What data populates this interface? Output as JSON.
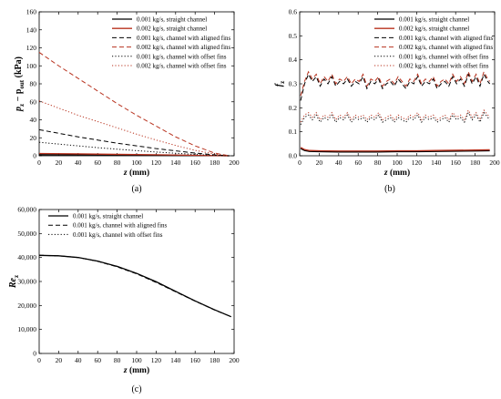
{
  "chart_data": [
    {
      "type": "line",
      "panel_label": "(a)",
      "xlabel": "z",
      "xunit": "(mm)",
      "ylabel": "p",
      "ylabel_sub1": "z",
      "ylabel_mid": " − p",
      "ylabel_sub2": "out",
      "ylabel_unit": " (kPa)",
      "xlim": [
        0,
        200
      ],
      "ylim": [
        0,
        160
      ],
      "xticks": [
        0,
        20,
        40,
        60,
        80,
        100,
        120,
        140,
        160,
        180,
        200
      ],
      "yticks": [
        0,
        20,
        40,
        60,
        80,
        100,
        120,
        140,
        160
      ],
      "legend_position": "top-right",
      "series": [
        {
          "name": "0.001 kg/s, straight channel",
          "color": "#000000",
          "dash": "solid",
          "x": [
            0,
            40,
            80,
            120,
            160,
            195
          ],
          "y": [
            1.2,
            1.0,
            0.8,
            0.6,
            0.3,
            0
          ]
        },
        {
          "name": "0.002 kg/s, straight channel",
          "color": "#b8321e",
          "dash": "solid",
          "x": [
            0,
            40,
            80,
            120,
            160,
            195
          ],
          "y": [
            2.5,
            2.1,
            1.6,
            1.1,
            0.5,
            0
          ]
        },
        {
          "name": "0.001 kg/s, channel with aligned fins",
          "color": "#000000",
          "dash": "dashed",
          "x": [
            0,
            20,
            40,
            60,
            80,
            100,
            120,
            140,
            160,
            180,
            195
          ],
          "y": [
            29,
            25,
            21,
            17.5,
            14,
            11,
            8,
            5.5,
            3,
            1,
            0
          ]
        },
        {
          "name": "0.002 kg/s, channel with aligned fins",
          "color": "#b8321e",
          "dash": "dashed",
          "x": [
            0,
            20,
            40,
            60,
            80,
            100,
            120,
            140,
            160,
            180,
            195
          ],
          "y": [
            115,
            100,
            86,
            72,
            58,
            45,
            33,
            21,
            11,
            3,
            0
          ]
        },
        {
          "name": "0.001 kg/s, channel with offset fins",
          "color": "#000000",
          "dash": "dotted",
          "x": [
            0,
            20,
            40,
            60,
            80,
            100,
            120,
            140,
            160,
            180,
            195
          ],
          "y": [
            15,
            13,
            11,
            9,
            7.3,
            5.7,
            4.2,
            2.8,
            1.5,
            0.5,
            0
          ]
        },
        {
          "name": "0.002 kg/s, channel with offset fins",
          "color": "#b8321e",
          "dash": "dotted",
          "x": [
            0,
            20,
            40,
            60,
            80,
            100,
            120,
            140,
            160,
            180,
            195
          ],
          "y": [
            61,
            53,
            45,
            38,
            31,
            24,
            17.5,
            11.5,
            6,
            2,
            0
          ]
        }
      ]
    },
    {
      "type": "line",
      "panel_label": "(b)",
      "xlabel": "z",
      "xunit": "(mm)",
      "ylabel": "f",
      "ylabel_sub1": "z",
      "xlim": [
        0,
        200
      ],
      "ylim": [
        0.0,
        0.6
      ],
      "xticks": [
        0,
        20,
        40,
        60,
        80,
        100,
        120,
        140,
        160,
        180,
        200
      ],
      "yticks": [
        0.0,
        0.1,
        0.2,
        0.3,
        0.4,
        0.5,
        0.6
      ],
      "legend_position": "top-right",
      "series": [
        {
          "name": "0.001 kg/s, straight channel",
          "color": "#000000",
          "dash": "solid",
          "x": [
            1,
            5,
            10,
            20,
            40,
            60,
            80,
            100,
            120,
            140,
            160,
            180,
            195
          ],
          "y": [
            0.03,
            0.022,
            0.018,
            0.017,
            0.016,
            0.016,
            0.016,
            0.017,
            0.017,
            0.018,
            0.019,
            0.02,
            0.021
          ]
        },
        {
          "name": "0.002 kg/s, straight channel",
          "color": "#b8321e",
          "dash": "solid",
          "x": [
            1,
            5,
            10,
            20,
            40,
            60,
            80,
            100,
            120,
            140,
            160,
            180,
            195
          ],
          "y": [
            0.035,
            0.026,
            0.022,
            0.021,
            0.02,
            0.02,
            0.02,
            0.021,
            0.021,
            0.022,
            0.023,
            0.024,
            0.025
          ]
        },
        {
          "name": "0.001 kg/s, channel with aligned fins",
          "color": "#000000",
          "dash": "dashed",
          "x": [
            1,
            5,
            9,
            13,
            17,
            21,
            25,
            29,
            33,
            37,
            41,
            45,
            49,
            53,
            57,
            61,
            65,
            69,
            73,
            77,
            81,
            85,
            89,
            93,
            97,
            101,
            105,
            109,
            113,
            117,
            121,
            125,
            129,
            133,
            137,
            141,
            145,
            149,
            153,
            157,
            161,
            165,
            169,
            173,
            177,
            181,
            185,
            189,
            193,
            195
          ],
          "y": [
            0.23,
            0.3,
            0.34,
            0.31,
            0.33,
            0.29,
            0.32,
            0.3,
            0.33,
            0.29,
            0.31,
            0.3,
            0.32,
            0.29,
            0.31,
            0.3,
            0.33,
            0.28,
            0.31,
            0.3,
            0.32,
            0.28,
            0.3,
            0.31,
            0.29,
            0.32,
            0.3,
            0.28,
            0.31,
            0.3,
            0.33,
            0.29,
            0.31,
            0.3,
            0.32,
            0.28,
            0.3,
            0.31,
            0.29,
            0.33,
            0.3,
            0.32,
            0.29,
            0.34,
            0.3,
            0.33,
            0.29,
            0.34,
            0.31,
            0.3
          ]
        },
        {
          "name": "0.002 kg/s, channel with aligned fins",
          "color": "#b8321e",
          "dash": "dashed",
          "x": [
            1,
            5,
            9,
            13,
            17,
            21,
            25,
            29,
            33,
            37,
            41,
            45,
            49,
            53,
            57,
            61,
            65,
            69,
            73,
            77,
            81,
            85,
            89,
            93,
            97,
            101,
            105,
            109,
            113,
            117,
            121,
            125,
            129,
            133,
            137,
            141,
            145,
            149,
            153,
            157,
            161,
            165,
            169,
            173,
            177,
            181,
            185,
            189,
            193,
            195
          ],
          "y": [
            0.25,
            0.31,
            0.35,
            0.32,
            0.34,
            0.3,
            0.33,
            0.31,
            0.34,
            0.3,
            0.32,
            0.31,
            0.33,
            0.3,
            0.32,
            0.31,
            0.34,
            0.29,
            0.32,
            0.31,
            0.33,
            0.29,
            0.31,
            0.32,
            0.3,
            0.33,
            0.31,
            0.29,
            0.32,
            0.31,
            0.34,
            0.3,
            0.32,
            0.31,
            0.33,
            0.29,
            0.31,
            0.32,
            0.3,
            0.34,
            0.31,
            0.33,
            0.3,
            0.35,
            0.31,
            0.34,
            0.3,
            0.35,
            0.32,
            0.31
          ]
        },
        {
          "name": "0.001 kg/s, channel with offset fins",
          "color": "#000000",
          "dash": "dotted",
          "x": [
            1,
            5,
            9,
            13,
            17,
            21,
            25,
            29,
            33,
            37,
            41,
            45,
            49,
            53,
            57,
            61,
            65,
            69,
            73,
            77,
            81,
            85,
            89,
            93,
            97,
            101,
            105,
            109,
            113,
            117,
            121,
            125,
            129,
            133,
            137,
            141,
            145,
            149,
            153,
            157,
            161,
            165,
            169,
            173,
            177,
            181,
            185,
            189,
            193,
            195
          ],
          "y": [
            0.13,
            0.16,
            0.17,
            0.15,
            0.17,
            0.14,
            0.16,
            0.15,
            0.17,
            0.14,
            0.16,
            0.15,
            0.17,
            0.14,
            0.16,
            0.15,
            0.16,
            0.14,
            0.16,
            0.15,
            0.17,
            0.14,
            0.15,
            0.16,
            0.14,
            0.16,
            0.15,
            0.14,
            0.16,
            0.15,
            0.17,
            0.14,
            0.16,
            0.15,
            0.16,
            0.14,
            0.15,
            0.16,
            0.14,
            0.17,
            0.15,
            0.16,
            0.14,
            0.18,
            0.15,
            0.17,
            0.14,
            0.18,
            0.16,
            0.15
          ]
        },
        {
          "name": "0.002 kg/s, channel with offset fins",
          "color": "#b8321e",
          "dash": "dotted",
          "x": [
            1,
            5,
            9,
            13,
            17,
            21,
            25,
            29,
            33,
            37,
            41,
            45,
            49,
            53,
            57,
            61,
            65,
            69,
            73,
            77,
            81,
            85,
            89,
            93,
            97,
            101,
            105,
            109,
            113,
            117,
            121,
            125,
            129,
            133,
            137,
            141,
            145,
            149,
            153,
            157,
            161,
            165,
            169,
            173,
            177,
            181,
            185,
            189,
            193,
            195
          ],
          "y": [
            0.14,
            0.17,
            0.18,
            0.16,
            0.18,
            0.15,
            0.17,
            0.16,
            0.18,
            0.15,
            0.17,
            0.16,
            0.18,
            0.15,
            0.17,
            0.16,
            0.17,
            0.15,
            0.17,
            0.16,
            0.18,
            0.15,
            0.16,
            0.17,
            0.15,
            0.17,
            0.16,
            0.15,
            0.17,
            0.16,
            0.18,
            0.15,
            0.17,
            0.16,
            0.17,
            0.15,
            0.16,
            0.17,
            0.15,
            0.18,
            0.16,
            0.17,
            0.15,
            0.19,
            0.16,
            0.18,
            0.15,
            0.19,
            0.17,
            0.16
          ]
        }
      ]
    },
    {
      "type": "line",
      "panel_label": "(c)",
      "xlabel": "z",
      "xunit": "(mm)",
      "ylabel": "Re",
      "ylabel_sub1": "z",
      "xlim": [
        0,
        200
      ],
      "ylim": [
        0,
        60000
      ],
      "xticks": [
        0,
        20,
        40,
        60,
        80,
        100,
        120,
        140,
        160,
        180,
        200
      ],
      "yticks": [
        0,
        10000,
        20000,
        30000,
        40000,
        50000,
        60000
      ],
      "ytick_labels": [
        "0",
        "10,000",
        "20,000",
        "30,000",
        "40,000",
        "50,000",
        "60,000"
      ],
      "legend_position": "top-left",
      "series": [
        {
          "name": "0.001 kg/s, straight channel",
          "color": "#000000",
          "dash": "solid",
          "x": [
            0,
            20,
            40,
            60,
            80,
            100,
            120,
            140,
            160,
            180,
            197
          ],
          "y": [
            40900,
            40700,
            40000,
            38500,
            36300,
            33400,
            29900,
            25900,
            21900,
            18200,
            15300
          ]
        },
        {
          "name": "0.001 kg/s, channel with aligned fins",
          "color": "#000000",
          "dash": "dashed",
          "x": [
            0,
            20,
            40,
            60,
            80,
            100,
            120,
            140,
            160,
            180,
            197
          ],
          "y": [
            40900,
            40700,
            40000,
            38400,
            36100,
            33200,
            29600,
            25700,
            21800,
            18100,
            15300
          ]
        },
        {
          "name": "0.001 kg/s, channel with offset fins",
          "color": "#000000",
          "dash": "dotted",
          "x": [
            0,
            20,
            40,
            60,
            80,
            100,
            120,
            140,
            160,
            180,
            197
          ],
          "y": [
            40900,
            40700,
            40000,
            38450,
            36200,
            33300,
            29750,
            25800,
            21850,
            18150,
            15300
          ]
        }
      ]
    }
  ]
}
